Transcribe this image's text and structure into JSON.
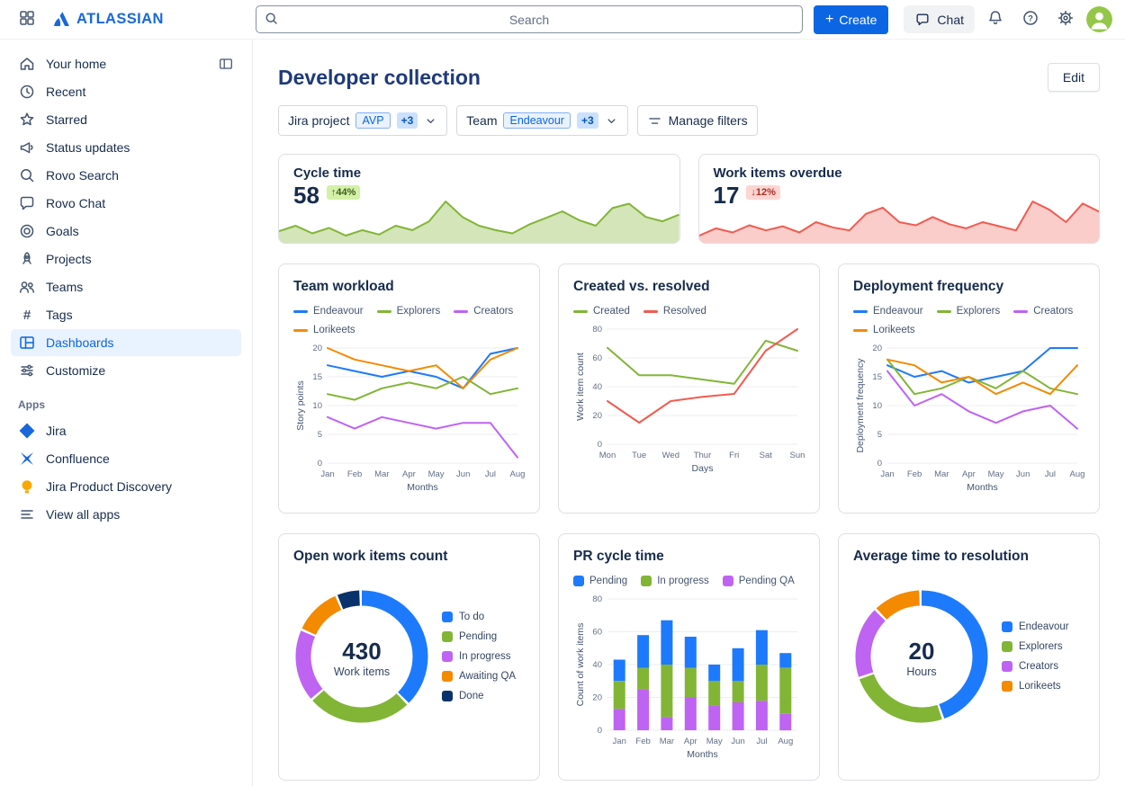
{
  "topbar": {
    "logo_text": "ATLASSIAN",
    "search_placeholder": "Search",
    "create_label": "Create",
    "chat_label": "Chat"
  },
  "sidebar": {
    "items": [
      {
        "label": "Your home",
        "icon": "home",
        "selected": false
      },
      {
        "label": "Recent",
        "icon": "clock",
        "selected": false
      },
      {
        "label": "Starred",
        "icon": "star",
        "selected": false
      },
      {
        "label": "Status updates",
        "icon": "megaphone",
        "selected": false
      },
      {
        "label": "Rovo Search",
        "icon": "search",
        "selected": false
      },
      {
        "label": "Rovo Chat",
        "icon": "chat",
        "selected": false
      },
      {
        "label": "Goals",
        "icon": "goal",
        "selected": false
      },
      {
        "label": "Projects",
        "icon": "project",
        "selected": false
      },
      {
        "label": "Teams",
        "icon": "teams",
        "selected": false
      },
      {
        "label": "Tags",
        "icon": "tag",
        "selected": false
      },
      {
        "label": "Dashboards",
        "icon": "dashboard",
        "selected": true
      },
      {
        "label": "Customize",
        "icon": "customize",
        "selected": false
      }
    ],
    "apps_section_label": "Apps",
    "apps": [
      {
        "label": "Jira",
        "icon": "jira"
      },
      {
        "label": "Confluence",
        "icon": "confluence"
      },
      {
        "label": "Jira Product Discovery",
        "icon": "jpd"
      }
    ],
    "view_all_apps_label": "View all apps"
  },
  "main": {
    "title": "Developer collection",
    "edit_label": "Edit",
    "filters": {
      "jira_project_label": "Jira project",
      "jira_project_value": "AVP",
      "jira_project_more": "+3",
      "team_label": "Team",
      "team_value": "Endeavour",
      "team_more": "+3",
      "manage_filters_label": "Manage filters"
    }
  },
  "chart_data": [
    {
      "id": "cycle-time",
      "type": "area",
      "title": "Cycle time",
      "value": "58",
      "delta": "↑44%",
      "direction": "up",
      "color": "#82b536",
      "fill": "rgba(130,181,54,0.35)",
      "values": [
        35,
        40,
        33,
        38,
        31,
        36,
        32,
        40,
        36,
        44,
        62,
        48,
        40,
        36,
        33,
        41,
        47,
        53,
        45,
        40,
        56,
        60,
        48,
        44,
        50
      ]
    },
    {
      "id": "work-items-overdue",
      "type": "area",
      "title": "Work items overdue",
      "value": "17",
      "delta": "↓12%",
      "direction": "down",
      "color": "#f15b50",
      "fill": "rgba(241,91,80,0.3)",
      "values": [
        25,
        32,
        28,
        35,
        30,
        34,
        28,
        38,
        33,
        30,
        46,
        52,
        38,
        35,
        43,
        36,
        32,
        38,
        34,
        30,
        58,
        50,
        38,
        56,
        48
      ]
    },
    {
      "id": "team-workload",
      "type": "line",
      "title": "Team workload",
      "xlabel": "Months",
      "ylabel": "Story points",
      "ylim": [
        0,
        20
      ],
      "yticks": [
        0,
        5,
        10,
        15,
        20
      ],
      "categories": [
        "Jan",
        "Feb",
        "Mar",
        "Apr",
        "May",
        "Jun",
        "Jul",
        "Aug"
      ],
      "series": [
        {
          "name": "Endeavour",
          "color": "#1d7afc",
          "values": [
            17,
            16,
            15,
            16,
            15,
            13,
            19,
            20
          ]
        },
        {
          "name": "Explorers",
          "color": "#82b536",
          "values": [
            12,
            11,
            13,
            14,
            13,
            15,
            12,
            13
          ]
        },
        {
          "name": "Creators",
          "color": "#bf63f3",
          "values": [
            8,
            6,
            8,
            7,
            6,
            7,
            7,
            1
          ]
        },
        {
          "name": "Lorikeets",
          "color": "#f38a00",
          "values": [
            20,
            18,
            17,
            16,
            17,
            13,
            18,
            20
          ]
        }
      ]
    },
    {
      "id": "created-vs-resolved",
      "type": "line",
      "title": "Created vs. resolved",
      "xlabel": "Days",
      "ylabel": "Work item count",
      "ylim": [
        0,
        80
      ],
      "yticks": [
        0,
        20,
        40,
        60,
        80
      ],
      "categories": [
        "Mon",
        "Tue",
        "Wed",
        "Thur",
        "Fri",
        "Sat",
        "Sun"
      ],
      "series": [
        {
          "name": "Created",
          "color": "#82b536",
          "values": [
            67,
            48,
            48,
            45,
            42,
            72,
            65
          ]
        },
        {
          "name": "Resolved",
          "color": "#f15b50",
          "values": [
            30,
            15,
            30,
            33,
            35,
            65,
            80
          ]
        }
      ]
    },
    {
      "id": "deployment-frequency",
      "type": "line",
      "title": "Deployment frequency",
      "xlabel": "Months",
      "ylabel": "Deployment frequency",
      "ylim": [
        0,
        20
      ],
      "yticks": [
        0,
        5,
        10,
        15,
        20
      ],
      "categories": [
        "Jan",
        "Feb",
        "Mar",
        "Apr",
        "May",
        "Jun",
        "Jul",
        "Aug"
      ],
      "series": [
        {
          "name": "Endeavour",
          "color": "#1d7afc",
          "values": [
            17,
            15,
            16,
            14,
            15,
            16,
            20,
            20
          ]
        },
        {
          "name": "Explorers",
          "color": "#82b536",
          "values": [
            18,
            12,
            13,
            15,
            13,
            16,
            13,
            12
          ]
        },
        {
          "name": "Creators",
          "color": "#bf63f3",
          "values": [
            16,
            10,
            12,
            9,
            7,
            9,
            10,
            6
          ]
        },
        {
          "name": "Lorikeets",
          "color": "#f38a00",
          "values": [
            18,
            17,
            14,
            15,
            12,
            14,
            12,
            17
          ]
        }
      ]
    },
    {
      "id": "open-work-items",
      "type": "donut",
      "title": "Open work items count",
      "center_value": "430",
      "center_label": "Work items",
      "segments": [
        {
          "label": "To do",
          "color": "#1d7afc",
          "value": 38
        },
        {
          "label": "Pending",
          "color": "#82b536",
          "value": 26
        },
        {
          "label": "In progress",
          "color": "#bf63f3",
          "value": 18
        },
        {
          "label": "Awaiting QA",
          "color": "#f38a00",
          "value": 12
        },
        {
          "label": "Done",
          "color": "#09326c",
          "value": 6
        }
      ]
    },
    {
      "id": "pr-cycle-time",
      "type": "bar",
      "title": "PR cycle time",
      "xlabel": "Months",
      "ylabel": "Count of work items",
      "ylim": [
        0,
        80
      ],
      "yticks": [
        0,
        20,
        40,
        60,
        80
      ],
      "categories": [
        "Jan",
        "Feb",
        "Mar",
        "Apr",
        "May",
        "Jun",
        "Jul",
        "Aug"
      ],
      "series": [
        {
          "name": "Pending",
          "color": "#1d7afc",
          "values": [
            13,
            20,
            27,
            19,
            10,
            20,
            21,
            9
          ]
        },
        {
          "name": "In progress",
          "color": "#82b536",
          "values": [
            17,
            13,
            32,
            18,
            15,
            13,
            22,
            28
          ]
        },
        {
          "name": "Pending QA",
          "color": "#bf63f3",
          "values": [
            13,
            25,
            8,
            20,
            15,
            17,
            18,
            10
          ]
        }
      ]
    },
    {
      "id": "avg-time-to-resolution",
      "type": "donut",
      "title": "Average time to resolution",
      "center_value": "20",
      "center_label": "Hours",
      "segments": [
        {
          "label": "Endeavour",
          "color": "#1d7afc",
          "value": 45
        },
        {
          "label": "Explorers",
          "color": "#82b536",
          "value": 25
        },
        {
          "label": "Creators",
          "color": "#bf63f3",
          "value": 18
        },
        {
          "label": "Lorikeets",
          "color": "#f38a00",
          "value": 12
        }
      ]
    }
  ]
}
